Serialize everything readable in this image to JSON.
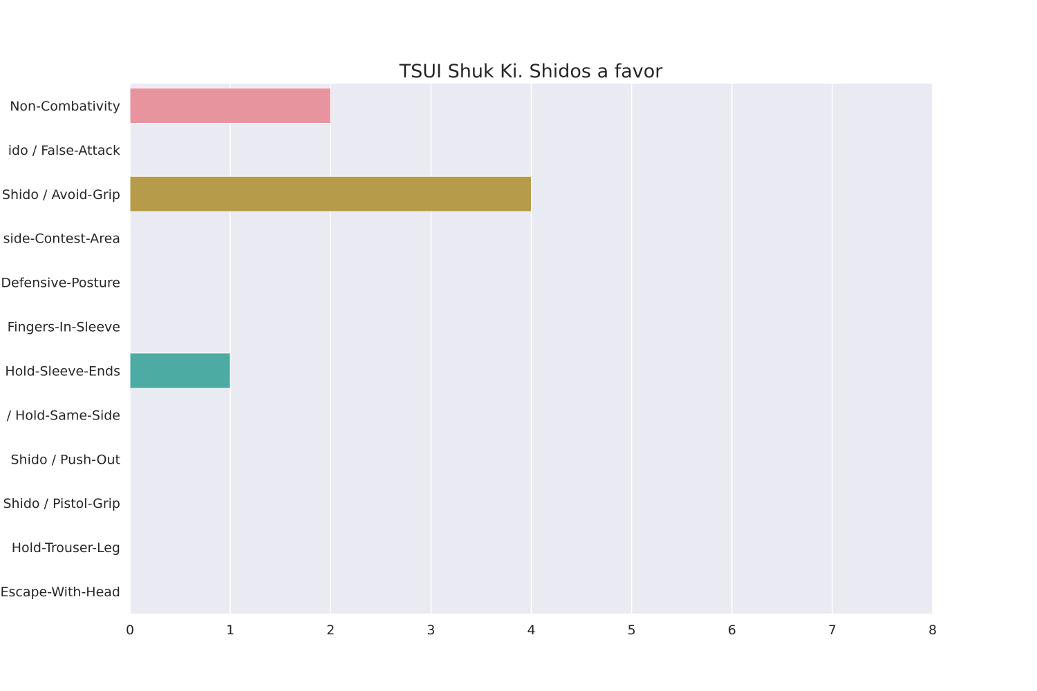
{
  "chart_data": {
    "type": "bar",
    "orientation": "horizontal",
    "title": "TSUI Shuk Ki. Shidos a favor",
    "xlabel": "",
    "ylabel": "",
    "xlim": [
      0,
      8
    ],
    "xticks": [
      "0",
      "1",
      "2",
      "3",
      "4",
      "5",
      "6",
      "7",
      "8"
    ],
    "grid": true,
    "background": "#eaeaf2",
    "categories": [
      "Non-Combativity",
      "ido / False-Attack",
      "Shido / Avoid-Grip",
      "side-Contest-Area",
      "Defensive-Posture",
      "Fingers-In-Sleeve",
      "Hold-Sleeve-Ends",
      "/ Hold-Same-Side",
      "Shido / Push-Out",
      "Shido / Pistol-Grip",
      "Hold-Trouser-Leg",
      "Escape-With-Head"
    ],
    "values": [
      2,
      0,
      4,
      0,
      0,
      0,
      1,
      0,
      0,
      0,
      0,
      0
    ],
    "colors": [
      "#e8949f",
      "#d9a06b",
      "#b69b4a",
      "#a3a64c",
      "#85b04c",
      "#4cb07d",
      "#4caba2",
      "#4ca7b8",
      "#5aa3d6",
      "#9b9be6",
      "#cf8ce0",
      "#e88fc4"
    ]
  }
}
